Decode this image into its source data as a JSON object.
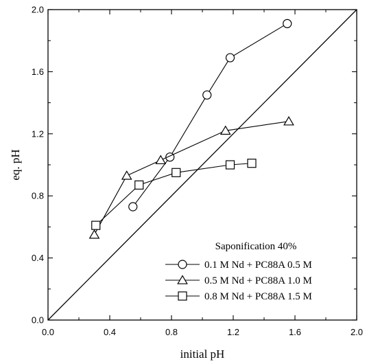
{
  "chart_data": {
    "type": "scatter",
    "xlabel": "initial pH",
    "ylabel": "eq. pH",
    "xlim": [
      0.0,
      2.0
    ],
    "ylim": [
      0.0,
      2.0
    ],
    "xticks": [
      "0.0",
      "0.4",
      "0.8",
      "1.2",
      "1.6",
      "2.0"
    ],
    "yticks": [
      "0.0",
      "0.4",
      "0.8",
      "1.2",
      "1.6",
      "2.0"
    ],
    "grid": false,
    "legend_title": "Saponification 40%",
    "legend_position": "bottom-right",
    "reference_line": {
      "x": [
        0.0,
        2.0
      ],
      "y": [
        0.0,
        2.0
      ]
    },
    "series": [
      {
        "name": "0.1 M Nd + PC88A 0.5 M",
        "marker": "circle",
        "x": [
          0.55,
          0.79,
          1.03,
          1.18,
          1.55
        ],
        "y": [
          0.73,
          1.05,
          1.45,
          1.69,
          1.91
        ]
      },
      {
        "name": "0.5 M Nd + PC88A 1.0 M",
        "marker": "triangle",
        "x": [
          0.3,
          0.51,
          0.73,
          1.15,
          1.56
        ],
        "y": [
          0.55,
          0.93,
          1.03,
          1.22,
          1.28
        ]
      },
      {
        "name": "0.8 M Nd + PC88A 1.5 M",
        "marker": "square",
        "x": [
          0.31,
          0.59,
          0.83,
          1.18,
          1.32
        ],
        "y": [
          0.61,
          0.87,
          0.95,
          1.0,
          1.01
        ]
      }
    ]
  }
}
